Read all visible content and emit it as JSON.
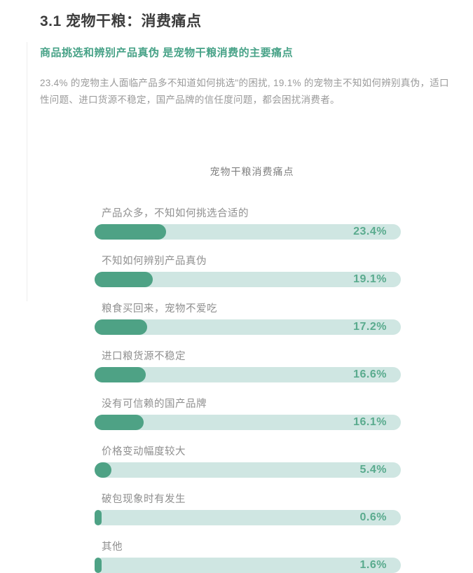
{
  "page": {
    "title": "3.1 宠物干粮：消费痛点",
    "subtitle": "商品挑选和辨别产品真伪 是宠物干粮消费的主要痛点",
    "body": "23.4% 的宠物主人面临产品多不知道如何挑选\"的困扰, 19.1% 的宠物主不知如何辨别真伪，适口性问题、进口货源不稳定，国产品牌的信任度问题，都会困扰消费者。"
  },
  "chart_data": {
    "type": "bar",
    "orientation": "horizontal",
    "title": "宠物干粮消费痛点",
    "categories": [
      "产品众多，不知如何挑选合适的",
      "不知如何辨别产品真伪",
      "粮食买回来，宠物不爱吃",
      "进口粮货源不稳定",
      "没有可信赖的国产品牌",
      "价格变动幅度较大",
      "破包现象时有发生",
      "其他"
    ],
    "values": [
      23.4,
      19.1,
      17.2,
      16.6,
      16.1,
      5.4,
      0.6,
      1.6
    ],
    "value_labels": [
      "23.4%",
      "19.1%",
      "17.2%",
      "16.6%",
      "16.1%",
      "5.4%",
      "0.6%",
      "1.6%"
    ],
    "xlabel": "",
    "ylabel": "",
    "xlim": [
      0,
      100
    ],
    "grid": false,
    "legend": "none",
    "colors": {
      "bar_fill": "#4ea285",
      "bar_track": "#cfe6e2",
      "value_text": "#5aab8e",
      "accent_green": "#47a287"
    }
  }
}
